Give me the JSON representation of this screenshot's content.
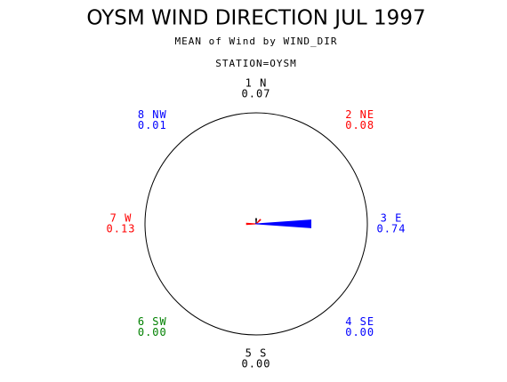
{
  "chart_data": {
    "type": "star",
    "title": "OYSM WIND DIRECTION JUL 1997",
    "subtitle": "MEAN of Wind by WIND_DIR",
    "group_label": "STATION=OYSM",
    "categories": [
      "1 N",
      "2 NE",
      "3 E",
      "4 SE",
      "5 S",
      "6 SW",
      "7 W",
      "8 NW"
    ],
    "values": [
      0.07,
      0.08,
      0.74,
      0.0,
      0.0,
      0.0,
      0.13,
      0.01
    ],
    "value_labels": [
      "0.07",
      "0.08",
      "0.74",
      "0.00",
      "0.00",
      "0.00",
      "0.13",
      "0.01"
    ],
    "colors": [
      "#000000",
      "#ff0000",
      "#0000ff",
      "#0000ff",
      "#000000",
      "#008000",
      "#ff0000",
      "#0000ff"
    ],
    "rlim": [
      0,
      1.5
    ]
  }
}
